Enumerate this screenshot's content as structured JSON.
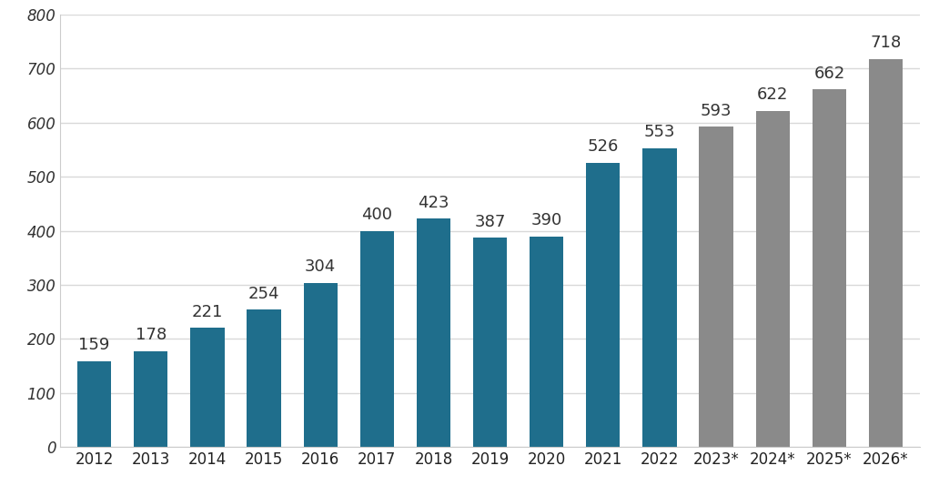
{
  "chart_data": {
    "type": "bar",
    "categories": [
      "2012",
      "2013",
      "2014",
      "2015",
      "2016",
      "2017",
      "2018",
      "2019",
      "2020",
      "2021",
      "2022",
      "2023*",
      "2024*",
      "2025*",
      "2026*"
    ],
    "values": [
      159,
      178,
      221,
      254,
      304,
      400,
      423,
      387,
      390,
      526,
      553,
      593,
      622,
      662,
      718
    ],
    "colors": [
      "#1f6e8c",
      "#1f6e8c",
      "#1f6e8c",
      "#1f6e8c",
      "#1f6e8c",
      "#1f6e8c",
      "#1f6e8c",
      "#1f6e8c",
      "#1f6e8c",
      "#1f6e8c",
      "#1f6e8c",
      "#8a8a8a",
      "#8a8a8a",
      "#8a8a8a",
      "#8a8a8a"
    ],
    "ylim": [
      0,
      800
    ],
    "yticks": [
      0,
      100,
      200,
      300,
      400,
      500,
      600,
      700,
      800
    ],
    "grid": true,
    "data_labels": true
  }
}
